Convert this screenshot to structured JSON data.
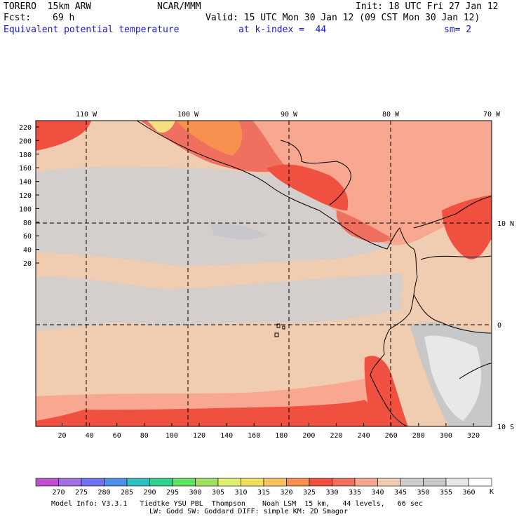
{
  "header": {
    "model": "TORERO  15km ARW",
    "org": "NCAR/MMM",
    "init": "Init: 18 UTC Fri 27 Jan 12",
    "fcst_label": "Fcst:",
    "fcst_value": "69 h",
    "valid": "Valid: 15 UTC Mon 30 Jan 12 (09 CST Mon 30 Jan 12)",
    "field": "Equivalent potential temperature",
    "level": "at k-index =  44",
    "smooth": "sm= 2"
  },
  "map": {
    "lon_labels": [
      "110 W",
      "100 W",
      "90 W",
      "80 W",
      "70 W"
    ],
    "lat_labels": [
      "10 N",
      "0",
      "10 S"
    ],
    "y_ticks": [
      "220",
      "200",
      "180",
      "160",
      "140",
      "120",
      "100",
      "80",
      "60",
      "40",
      "20"
    ],
    "x_ticks": [
      "20",
      "40",
      "60",
      "80",
      "100",
      "120",
      "140",
      "160",
      "180",
      "200",
      "220",
      "240",
      "260",
      "280",
      "300",
      "320"
    ]
  },
  "colorbar": {
    "labels": [
      "270",
      "275",
      "280",
      "285",
      "290",
      "295",
      "300",
      "305",
      "310",
      "315",
      "320",
      "325",
      "330",
      "335",
      "340",
      "345",
      "350",
      "355",
      "360"
    ],
    "unit": "K",
    "colors": [
      "#c050d0",
      "#a070e0",
      "#7070f0",
      "#5090e8",
      "#30c0c0",
      "#30d090",
      "#60e060",
      "#a0e060",
      "#e0f070",
      "#f0e060",
      "#f8c060",
      "#f89050",
      "#f05040",
      "#f07060",
      "#f8a890",
      "#f0ccb0",
      "#d0cccc",
      "#c8c8c8",
      "#e8e8e8",
      "#ffffff"
    ]
  },
  "footer": {
    "line1": "Model Info: V3.3.1   Tiedtke YSU PBL  Thompson    Noah LSM  15 km,   44 levels,   66 sec",
    "line2": "LW: Godd SW: Goddard DIFF: simple KM: 2D Smagor"
  }
}
